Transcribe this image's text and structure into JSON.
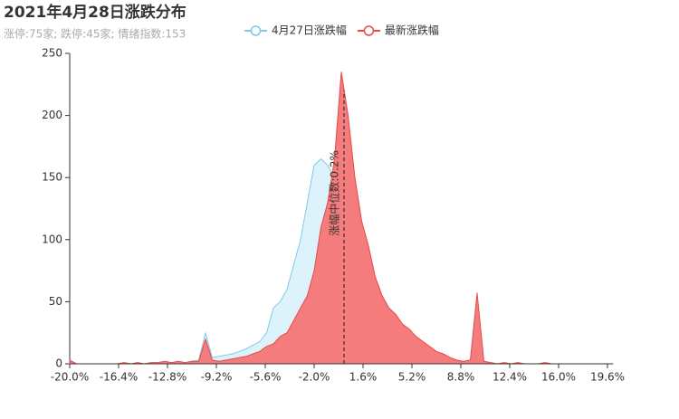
{
  "chart_data": {
    "type": "area",
    "title": "2021年4月28日涨跌分布",
    "subtitle": "涨停:75家; 跌停:45家; 情绪指数:153",
    "x": [
      -20,
      -19.5,
      -19,
      -18.5,
      -18,
      -17.5,
      -17,
      -16.5,
      -16,
      -15.5,
      -15,
      -14.5,
      -14,
      -13.5,
      -13,
      -12.5,
      -12,
      -11.5,
      -11,
      -10.5,
      -10,
      -9.5,
      -9,
      -8.5,
      -8,
      -7.5,
      -7,
      -6.5,
      -6,
      -5.5,
      -5,
      -4.5,
      -4,
      -3.5,
      -3,
      -2.5,
      -2,
      -1.5,
      -1,
      -0.5,
      0,
      0.5,
      1,
      1.5,
      2,
      2.5,
      3,
      3.5,
      4,
      4.5,
      5,
      5.5,
      6,
      6.5,
      7,
      7.5,
      8,
      8.5,
      9,
      9.5,
      10,
      10.5,
      11,
      11.5,
      12,
      12.5,
      13,
      13.5,
      14,
      14.5,
      15,
      15.5,
      16,
      16.5,
      17,
      17.5,
      18,
      18.5,
      19,
      19.5,
      20
    ],
    "series": [
      {
        "name": "4月27日涨跌幅",
        "color": "#7fcbe9",
        "fill": "#ddf3fb",
        "values": [
          0,
          0,
          0,
          0,
          0,
          0,
          0,
          0,
          0,
          0,
          0,
          0,
          0,
          0,
          1,
          1,
          1,
          1,
          2,
          3,
          25,
          5,
          6,
          7,
          8,
          10,
          12,
          15,
          18,
          25,
          45,
          50,
          60,
          80,
          100,
          130,
          160,
          165,
          160,
          150,
          185,
          170,
          130,
          90,
          60,
          40,
          30,
          25,
          20,
          15,
          12,
          10,
          8,
          6,
          4,
          3,
          2,
          2,
          2,
          3,
          38,
          1,
          0,
          0,
          0,
          0,
          0,
          0,
          0,
          0,
          0,
          0,
          0,
          0,
          0,
          0,
          0,
          0,
          0,
          0,
          0
        ]
      },
      {
        "name": "最新涨跌幅",
        "color": "#e84a4a",
        "fill": "#f47c7c",
        "values": [
          3,
          0,
          0,
          0,
          0,
          0,
          0,
          0,
          1,
          0,
          1,
          0,
          1,
          1,
          2,
          1,
          2,
          1,
          2,
          2,
          20,
          3,
          2,
          3,
          4,
          5,
          6,
          8,
          10,
          14,
          16,
          22,
          25,
          35,
          45,
          55,
          75,
          110,
          130,
          165,
          235,
          200,
          150,
          115,
          95,
          70,
          55,
          45,
          40,
          32,
          28,
          22,
          18,
          14,
          10,
          8,
          5,
          3,
          2,
          3,
          57,
          2,
          1,
          0,
          1,
          0,
          1,
          0,
          0,
          0,
          1,
          0,
          0,
          0,
          0,
          0,
          0,
          0,
          0,
          0,
          0
        ]
      }
    ],
    "median": {
      "value": 0.2,
      "label": "涨幅中位数:0.2%"
    },
    "xlim": [
      -20,
      20
    ],
    "xticks": [
      {
        "value": -20,
        "label": "-20.0%"
      },
      {
        "value": -16.4,
        "label": "-16.4%"
      },
      {
        "value": -12.8,
        "label": "-12.8%"
      },
      {
        "value": -9.2,
        "label": "-9.2%"
      },
      {
        "value": -5.6,
        "label": "-5.6%"
      },
      {
        "value": -2,
        "label": "-2.0%"
      },
      {
        "value": 1.6,
        "label": "1.6%"
      },
      {
        "value": 5.2,
        "label": "5.2%"
      },
      {
        "value": 8.8,
        "label": "8.8%"
      },
      {
        "value": 12.4,
        "label": "12.4%"
      },
      {
        "value": 16,
        "label": "16.0%"
      },
      {
        "value": 19.6,
        "label": "19.6%"
      }
    ],
    "ylim": [
      0,
      250
    ],
    "yticks": [
      0,
      50,
      100,
      150,
      200,
      250
    ],
    "grid": false
  }
}
